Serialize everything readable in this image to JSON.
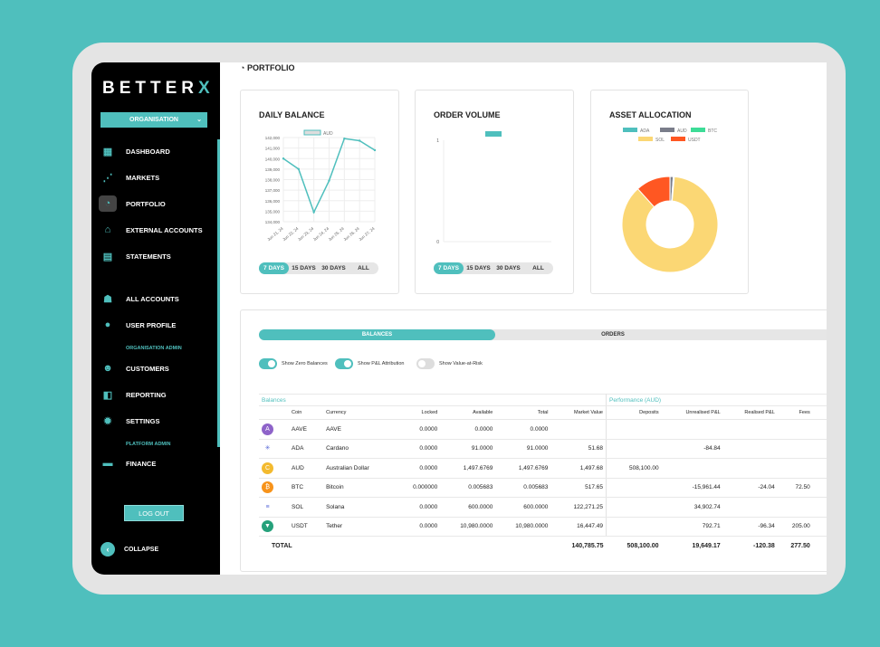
{
  "brand": {
    "logo": "BETTER",
    "logo_mark": "X"
  },
  "sidebar": {
    "org": "ORGANISATION",
    "items": [
      {
        "label": "DASHBOARD",
        "icon": "grid-icon"
      },
      {
        "label": "MARKETS",
        "icon": "chart-dots-icon"
      },
      {
        "label": "PORTFOLIO",
        "icon": "pie-icon",
        "active": true
      },
      {
        "label": "EXTERNAL ACCOUNTS",
        "icon": "bank-icon"
      },
      {
        "label": "STATEMENTS",
        "icon": "document-icon"
      },
      {
        "label": "ALL ACCOUNTS",
        "icon": "users-icon"
      },
      {
        "label": "USER PROFILE",
        "icon": "user-icon"
      },
      {
        "label": "CUSTOMERS",
        "icon": "customer-icon"
      },
      {
        "label": "REPORTING",
        "icon": "report-icon"
      },
      {
        "label": "SETTINGS",
        "icon": "gear-icon"
      },
      {
        "label": "FINANCE",
        "icon": "money-icon"
      }
    ],
    "section_org_admin": "ORGANISATION ADMIN",
    "section_platform_admin": "PLATFORM ADMIN",
    "logout": "LOG OUT",
    "collapse": "COLLAPSE"
  },
  "page_title": "PORTFOLIO",
  "ranges": [
    "7 DAYS",
    "15 DAYS",
    "30 DAYS",
    "ALL"
  ],
  "chart_data": [
    {
      "type": "line",
      "title": "DAILY BALANCE",
      "legend": [
        "AUD"
      ],
      "categories": [
        "Jun 21, 24",
        "Jun 22, 24",
        "Jun 23, 24",
        "Jun 24, 24",
        "Jun 25, 24",
        "Jun 26, 24",
        "Jun 27, 24"
      ],
      "series": [
        {
          "name": "AUD",
          "values": [
            140000,
            139000,
            134900,
            137900,
            141900,
            141700,
            140800
          ]
        }
      ],
      "ylim": [
        134000,
        142000
      ],
      "yticks": [
        "134,000",
        "135,000",
        "136,000",
        "137,000",
        "138,000",
        "139,000",
        "140,000",
        "141,000",
        "142,000"
      ],
      "grid": true,
      "color": "#4fbfbd"
    },
    {
      "type": "bar",
      "title": "ORDER VOLUME",
      "categories": [],
      "series": [],
      "ylim": [
        0,
        1
      ],
      "yticks": [
        "0",
        "1"
      ]
    },
    {
      "type": "pie",
      "title": "ASSET ALLOCATION",
      "categories": [
        "ADA",
        "AUD",
        "BTC",
        "SOL",
        "USDT"
      ],
      "values": [
        51.68,
        1497.68,
        517.65,
        122271.25,
        16447.49
      ],
      "colors": [
        "#4fbfbd",
        "#7a7d8a",
        "#3ddc97",
        "#fbd774",
        "#ff5722"
      ],
      "legend": "top"
    }
  ],
  "tabs": {
    "balances": "BALANCES",
    "orders": "ORDERS"
  },
  "toggles": [
    {
      "label": "Show Zero Balances",
      "on": true
    },
    {
      "label": "Show P&L Attribution",
      "on": true
    },
    {
      "label": "Show Value-at-Risk",
      "on": false
    }
  ],
  "table": {
    "group_balances": "Balances",
    "group_performance": "Performance (AUD)",
    "headers": [
      "Coin",
      "Currency",
      "Locked",
      "Available",
      "Total",
      "Market Value",
      "Deposits",
      "Unrealised P&L",
      "Realised P&L",
      "Fees"
    ],
    "rows": [
      {
        "icon": "aave-icon",
        "color": "#8e63c9",
        "glyph": "A",
        "c": [
          "AAVE",
          "AAVE",
          "0.0000",
          "0.0000",
          "0.0000",
          "",
          "",
          "",
          "",
          ""
        ]
      },
      {
        "icon": "cardano-icon",
        "color": "#fff",
        "glyph": "✳",
        "c": [
          "ADA",
          "Cardano",
          "0.0000",
          "91.0000",
          "91.0000",
          "51.68",
          "",
          "-84.84",
          "",
          ""
        ]
      },
      {
        "icon": "aud-icon",
        "color": "#f3ba2f",
        "glyph": "C",
        "c": [
          "AUD",
          "Australian Dollar",
          "0.0000",
          "1,497.6769",
          "1,497.6769",
          "1,497.68",
          "508,100.00",
          "",
          "",
          ""
        ]
      },
      {
        "icon": "bitcoin-icon",
        "color": "#f7931a",
        "glyph": "₿",
        "c": [
          "BTC",
          "Bitcoin",
          "0.000000",
          "0.005683",
          "0.005683",
          "517.65",
          "",
          "-15,961.44",
          "-24.04",
          "72.50"
        ]
      },
      {
        "icon": "solana-icon",
        "color": "#fff",
        "glyph": "≡",
        "c": [
          "SOL",
          "Solana",
          "0.0000",
          "600.0000",
          "600.0000",
          "122,271.25",
          "",
          "34,902.74",
          "",
          ""
        ]
      },
      {
        "icon": "tether-icon",
        "color": "#26a17b",
        "glyph": "▼",
        "c": [
          "USDT",
          "Tether",
          "0.0000",
          "10,980.0000",
          "10,980.0000",
          "16,447.49",
          "",
          "792.71",
          "-96.34",
          "205.00"
        ]
      }
    ],
    "total": {
      "label": "TOTAL",
      "market_value": "140,785.75",
      "deposits": "508,100.00",
      "unrealised": "19,649.17",
      "realised": "-120.38",
      "fees": "277.50"
    }
  }
}
